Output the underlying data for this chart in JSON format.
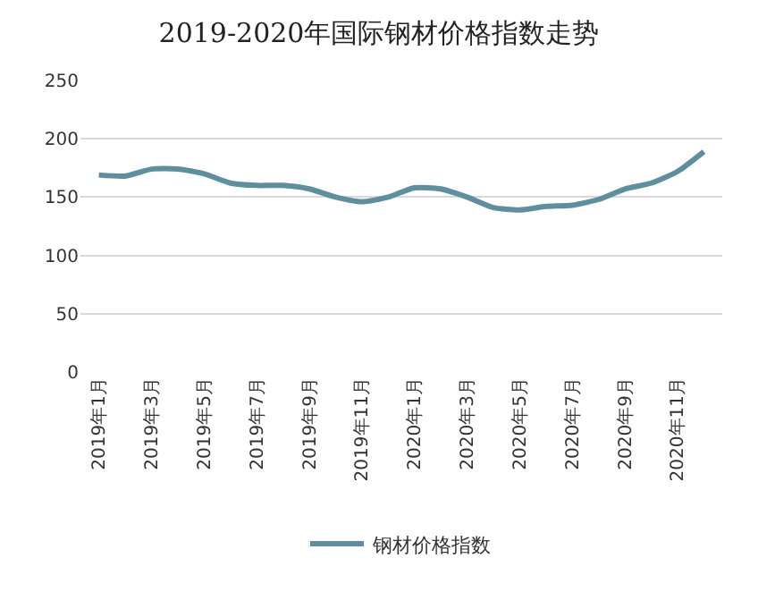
{
  "chart_data": {
    "type": "line",
    "title": "2019-2020年国际钢材价格指数走势",
    "categories": [
      "2019年1月",
      null,
      "2019年3月",
      null,
      "2019年5月",
      null,
      "2019年7月",
      null,
      "2019年9月",
      null,
      "2019年11月",
      null,
      "2020年1月",
      null,
      "2020年3月",
      null,
      "2020年5月",
      null,
      "2020年7月",
      null,
      "2020年9月",
      null,
      "2020年11月",
      null
    ],
    "series": [
      {
        "name": "钢材价格指数",
        "color": "#5f8f9f",
        "values": [
          169,
          168,
          174,
          174,
          170,
          162,
          160,
          160,
          157,
          150,
          146,
          150,
          158,
          157,
          150,
          141,
          139,
          142,
          143,
          148,
          157,
          162,
          172,
          189
        ]
      }
    ],
    "ylim": [
      0,
      250
    ],
    "yticks": [
      0,
      50,
      100,
      150,
      200,
      250
    ],
    "grid": "y",
    "legend": "bottom",
    "marker": "none",
    "line_style": "solid"
  }
}
